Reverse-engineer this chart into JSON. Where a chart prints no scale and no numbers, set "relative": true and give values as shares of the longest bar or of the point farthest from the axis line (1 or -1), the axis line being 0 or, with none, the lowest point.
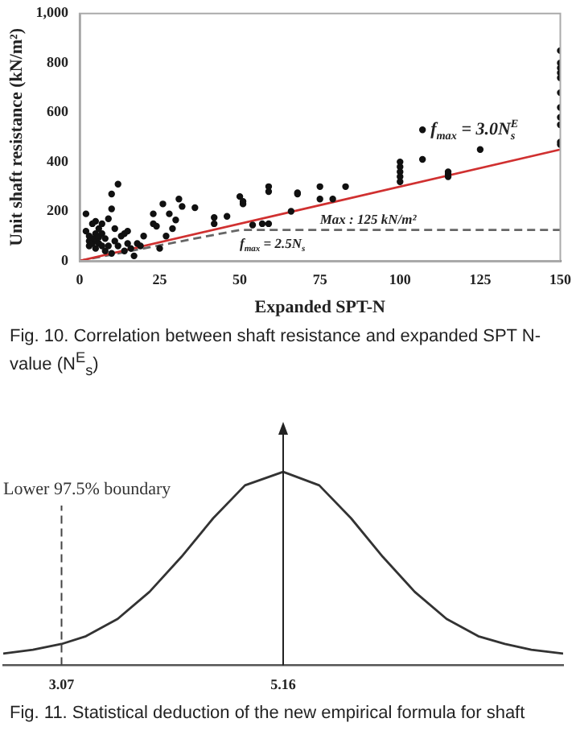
{
  "chart_data": [
    {
      "type": "scatter",
      "xlabel": "Expanded SPT-N",
      "ylabel": "Unit shaft resistance (kN/m²)",
      "xlim": [
        0,
        150
      ],
      "xticks": [
        0,
        25,
        50,
        75,
        100,
        125,
        150
      ],
      "ylim": [
        0,
        1000
      ],
      "yticks": [
        0,
        200,
        400,
        600,
        800,
        {
          "value": 1000,
          "label": "1,000"
        }
      ],
      "grid": false,
      "legend": false,
      "series": [
        {
          "type": "scatter",
          "marker": "circle",
          "color": "#111111",
          "x": [
            2,
            2,
            3,
            3,
            3,
            4,
            4,
            4,
            5,
            5,
            5,
            5,
            6,
            6,
            6,
            7,
            7,
            7,
            8,
            8,
            9,
            9,
            10,
            10,
            10,
            11,
            11,
            12,
            12,
            13,
            14,
            14,
            15,
            15,
            16,
            17,
            18,
            19,
            20,
            23,
            23,
            24,
            25,
            26,
            27,
            28,
            29,
            30,
            31,
            32,
            36,
            42,
            42,
            46,
            50,
            51,
            51,
            54,
            57,
            59,
            59,
            59,
            66,
            68,
            68,
            75,
            75,
            79,
            83,
            100,
            100,
            100,
            100,
            100,
            107,
            107,
            115,
            115,
            115,
            125,
            150,
            150,
            150,
            150,
            150,
            150,
            150,
            150,
            150,
            150,
            150
          ],
          "values": [
            190,
            120,
            80,
            100,
            60,
            150,
            90,
            70,
            160,
            110,
            85,
            50,
            130,
            95,
            70,
            150,
            110,
            60,
            90,
            40,
            170,
            60,
            270,
            210,
            30,
            130,
            80,
            310,
            60,
            100,
            110,
            40,
            120,
            70,
            50,
            20,
            70,
            60,
            100,
            190,
            150,
            140,
            50,
            230,
            100,
            190,
            130,
            165,
            250,
            220,
            215,
            175,
            150,
            180,
            260,
            230,
            240,
            145,
            150,
            300,
            280,
            150,
            200,
            270,
            275,
            300,
            250,
            250,
            300,
            400,
            380,
            360,
            340,
            320,
            530,
            410,
            350,
            340,
            360,
            450,
            850,
            800,
            780,
            760,
            740,
            680,
            620,
            580,
            550,
            480,
            470
          ]
        },
        {
          "type": "line",
          "marker": "none",
          "line_style": "solid",
          "color": "#d03030",
          "x": [
            0,
            150
          ],
          "values": [
            0,
            450
          ]
        },
        {
          "type": "line",
          "marker": "none",
          "line_style": "dashed",
          "color": "#666666",
          "x": [
            0,
            50,
            150
          ],
          "values": [
            0,
            125,
            125
          ]
        }
      ],
      "annotations": [
        {
          "text": "f$_{max}$ = 3.0N$^{E}$$_{s}$",
          "x": 107,
          "y": 530
        },
        {
          "text": "Max : 125 kN/m²",
          "x": 75,
          "y": 125
        },
        {
          "text": "f$_{max}$ = 2.5N$_{s}$",
          "x": 50,
          "y": 125
        },
        "Fig. 10. Correlation between shaft resistance and expanded SPT N-value (N$^{E}$$_{s}$)"
      ]
    },
    {
      "type": "line",
      "relative": true,
      "tick_labels": "x",
      "grid": false,
      "legend": false,
      "xlim": [
        2.52,
        7.8
      ],
      "xticks": [
        3.07,
        5.16
      ],
      "series": [
        {
          "marker": "none",
          "line_style": "solid",
          "color": "#333333",
          "x": [
            2.52,
            2.8,
            3.07,
            3.3,
            3.6,
            3.9,
            4.2,
            4.5,
            4.8,
            5.16,
            5.5,
            5.8,
            6.1,
            6.4,
            6.7,
            7.0,
            7.25,
            7.5,
            7.8
          ],
          "values": [
            0.06,
            0.08,
            0.11,
            0.15,
            0.24,
            0.38,
            0.56,
            0.76,
            0.93,
            1.0,
            0.93,
            0.76,
            0.56,
            0.38,
            0.24,
            0.15,
            0.11,
            0.08,
            0.06
          ]
        }
      ],
      "ref_lines": [
        {
          "axis": "x",
          "value": 3.07,
          "label": "Lower 97.5% boundary",
          "line_style": "dashed",
          "color": "#444444"
        },
        {
          "axis": "x",
          "value": 5.16,
          "line_style": "solid",
          "color": "#222222"
        }
      ],
      "annotations": [
        "Fig. 11. Statistical deduction of the new empirical formula for shaft"
      ]
    }
  ]
}
